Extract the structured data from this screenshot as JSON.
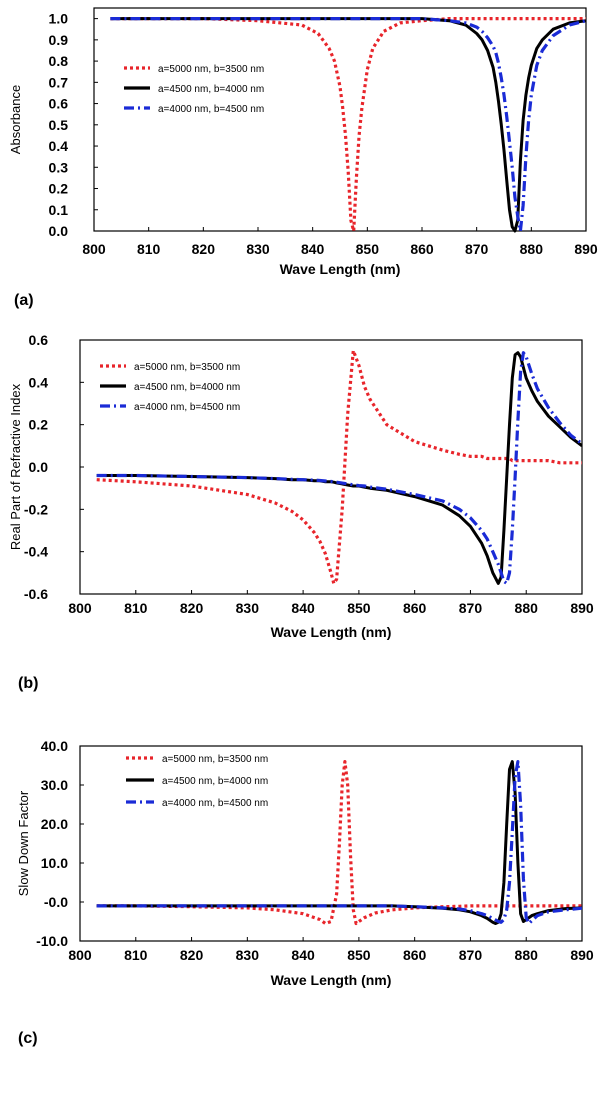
{
  "chart_data": [
    {
      "type": "line",
      "panel_label": "(a)",
      "xlabel": "Wave Length (nm)",
      "ylabel": "Absorbance",
      "xlim": [
        800,
        890
      ],
      "ylim": [
        0,
        1.05
      ],
      "xticks": [
        "800",
        "810",
        "820",
        "830",
        "840",
        "850",
        "860",
        "870",
        "880",
        "890"
      ],
      "yticks": [
        "0.0",
        "0.1",
        "0.2",
        "0.3",
        "0.4",
        "0.5",
        "0.6",
        "0.7",
        "0.8",
        "0.9",
        "1.0"
      ],
      "x": [
        803,
        810,
        820,
        830,
        838,
        841,
        843,
        844,
        845,
        845.5,
        846,
        846.5,
        847,
        847.5,
        848,
        848.5,
        849,
        850,
        851,
        853,
        856,
        860,
        865,
        868,
        870,
        871,
        872,
        873,
        873.5,
        874,
        874.5,
        875,
        875.5,
        876,
        876.5,
        877,
        877.5,
        878,
        878.5,
        879,
        879.5,
        880,
        881,
        882,
        884,
        887,
        890
      ],
      "series": [
        {
          "name": "a=5000 nm, b=3500 nm",
          "color": "#e8252b",
          "dash": "dotted",
          "values": [
            1.0,
            1.0,
            1.0,
            0.99,
            0.97,
            0.93,
            0.86,
            0.8,
            0.68,
            0.58,
            0.45,
            0.28,
            0.05,
            0.0,
            0.25,
            0.45,
            0.58,
            0.76,
            0.86,
            0.94,
            0.98,
            0.99,
            1.0,
            1.0,
            1.0,
            1.0,
            1.0,
            1.0,
            1.0,
            1.0,
            1.0,
            1.0,
            1.0,
            1.0,
            1.0,
            1.0,
            1.0,
            1.0,
            1.0,
            1.0,
            1.0,
            1.0,
            1.0,
            1.0,
            1.0,
            1.0,
            1.0
          ]
        },
        {
          "name": "a=4500 nm, b=4000 nm",
          "color": "#000000",
          "dash": "solid",
          "values": [
            1.0,
            1.0,
            1.0,
            1.0,
            1.0,
            1.0,
            1.0,
            1.0,
            1.0,
            1.0,
            1.0,
            1.0,
            1.0,
            1.0,
            1.0,
            1.0,
            1.0,
            1.0,
            1.0,
            1.0,
            1.0,
            1.0,
            0.99,
            0.97,
            0.93,
            0.9,
            0.85,
            0.77,
            0.7,
            0.61,
            0.5,
            0.38,
            0.24,
            0.1,
            0.02,
            0.0,
            0.05,
            0.33,
            0.52,
            0.64,
            0.72,
            0.78,
            0.86,
            0.9,
            0.95,
            0.98,
            0.99
          ]
        },
        {
          "name": "a=4000 nm, b=4500 nm",
          "color": "#1a2bd6",
          "dash": "dashdot",
          "values": [
            1.0,
            1.0,
            1.0,
            1.0,
            1.0,
            1.0,
            1.0,
            1.0,
            1.0,
            1.0,
            1.0,
            1.0,
            1.0,
            1.0,
            1.0,
            1.0,
            1.0,
            1.0,
            1.0,
            1.0,
            1.0,
            1.0,
            0.99,
            0.98,
            0.96,
            0.94,
            0.91,
            0.87,
            0.84,
            0.79,
            0.72,
            0.64,
            0.54,
            0.42,
            0.3,
            0.16,
            0.07,
            0.0,
            0.12,
            0.35,
            0.52,
            0.64,
            0.78,
            0.85,
            0.92,
            0.97,
            0.99
          ]
        }
      ]
    },
    {
      "type": "line",
      "panel_label": "(b)",
      "xlabel": "Wave Length (nm)",
      "ylabel": "Real Part of Refractive Index",
      "xlim": [
        800,
        890
      ],
      "ylim": [
        -0.6,
        0.6
      ],
      "xticks": [
        "800",
        "810",
        "820",
        "830",
        "840",
        "850",
        "860",
        "870",
        "880",
        "890"
      ],
      "yticks": [
        "-0.6",
        "-0.4",
        "-0.2",
        "0.0",
        "0.2",
        "0.4",
        "0.6"
      ],
      "x": [
        803,
        810,
        820,
        830,
        835,
        838,
        840,
        842,
        843,
        844,
        845,
        845.5,
        846,
        847,
        848,
        849,
        850,
        851,
        852,
        855,
        860,
        865,
        868,
        870,
        872,
        873,
        874,
        875,
        875.5,
        876,
        876.5,
        877,
        877.5,
        878,
        878.5,
        879,
        879.5,
        880,
        881,
        882,
        884,
        886,
        888,
        890
      ],
      "series": [
        {
          "name": "a=5000 nm, b=3500 nm",
          "color": "#e8252b",
          "dash": "dotted",
          "values": [
            -0.06,
            -0.07,
            -0.09,
            -0.13,
            -0.17,
            -0.21,
            -0.25,
            -0.31,
            -0.35,
            -0.41,
            -0.5,
            -0.55,
            -0.53,
            -0.2,
            0.25,
            0.55,
            0.48,
            0.38,
            0.32,
            0.2,
            0.12,
            0.08,
            0.06,
            0.05,
            0.05,
            0.04,
            0.04,
            0.04,
            0.04,
            0.04,
            0.04,
            0.04,
            0.03,
            0.03,
            0.03,
            0.03,
            0.03,
            0.03,
            0.03,
            0.03,
            0.03,
            0.02,
            0.02,
            0.02
          ]
        },
        {
          "name": "a=4500 nm, b=4000 nm",
          "color": "#000000",
          "dash": "solid",
          "values": [
            -0.04,
            -0.04,
            -0.045,
            -0.05,
            -0.055,
            -0.06,
            -0.06,
            -0.065,
            -0.065,
            -0.07,
            -0.07,
            -0.072,
            -0.075,
            -0.08,
            -0.085,
            -0.09,
            -0.09,
            -0.095,
            -0.1,
            -0.11,
            -0.14,
            -0.18,
            -0.23,
            -0.28,
            -0.36,
            -0.42,
            -0.5,
            -0.55,
            -0.52,
            -0.3,
            -0.05,
            0.2,
            0.42,
            0.53,
            0.54,
            0.52,
            0.47,
            0.42,
            0.36,
            0.31,
            0.24,
            0.19,
            0.14,
            0.1
          ]
        },
        {
          "name": "a=4000 nm, b=4500 nm",
          "color": "#1a2bd6",
          "dash": "dashdot",
          "values": [
            -0.04,
            -0.04,
            -0.045,
            -0.05,
            -0.055,
            -0.058,
            -0.06,
            -0.062,
            -0.064,
            -0.066,
            -0.068,
            -0.07,
            -0.072,
            -0.076,
            -0.08,
            -0.084,
            -0.088,
            -0.09,
            -0.095,
            -0.105,
            -0.13,
            -0.16,
            -0.2,
            -0.24,
            -0.3,
            -0.34,
            -0.4,
            -0.46,
            -0.5,
            -0.54,
            -0.55,
            -0.5,
            -0.3,
            -0.05,
            0.22,
            0.45,
            0.54,
            0.52,
            0.44,
            0.37,
            0.28,
            0.21,
            0.15,
            0.11
          ]
        }
      ]
    },
    {
      "type": "line",
      "panel_label": "(c)",
      "xlabel": "Wave Length (nm)",
      "ylabel": "Slow Down Factor",
      "xlim": [
        800,
        890
      ],
      "ylim": [
        -10,
        40
      ],
      "xticks": [
        "800",
        "810",
        "820",
        "830",
        "840",
        "850",
        "860",
        "870",
        "880",
        "890"
      ],
      "yticks": [
        "-10.0",
        "-0.0",
        "10.0",
        "20.0",
        "30.0",
        "40.0"
      ],
      "x": [
        803,
        810,
        820,
        830,
        835,
        840,
        843,
        844,
        845,
        846,
        846.5,
        847,
        847.5,
        848,
        848.5,
        849,
        849.5,
        850,
        851,
        853,
        856,
        860,
        865,
        868,
        870,
        872,
        873,
        874,
        874.5,
        875,
        875.5,
        876,
        876.5,
        877,
        877.5,
        878,
        878.5,
        879,
        879.5,
        880,
        880.5,
        881,
        882,
        884,
        887,
        890
      ],
      "series": [
        {
          "name": "a=5000 nm, b=3500 nm",
          "color": "#e8252b",
          "dash": "dotted",
          "values": [
            -1.0,
            -1.0,
            -1.2,
            -1.5,
            -2.0,
            -3.0,
            -4.5,
            -5.5,
            -5.0,
            2.0,
            15.0,
            30.0,
            36.0,
            30.0,
            12.0,
            -2.0,
            -5.5,
            -5.0,
            -4.0,
            -2.8,
            -2.0,
            -1.5,
            -1.2,
            -1.1,
            -1.0,
            -1.0,
            -1.0,
            -1.0,
            -1.0,
            -1.0,
            -1.0,
            -1.0,
            -1.0,
            -1.0,
            -1.0,
            -1.0,
            -1.0,
            -1.0,
            -1.0,
            -1.0,
            -1.0,
            -1.0,
            -1.0,
            -1.0,
            -1.0,
            -1.0
          ]
        },
        {
          "name": "a=4500 nm, b=4000 nm",
          "color": "#000000",
          "dash": "solid",
          "values": [
            -1.0,
            -1.0,
            -1.0,
            -1.0,
            -1.0,
            -1.0,
            -1.0,
            -1.0,
            -1.0,
            -1.0,
            -1.0,
            -1.0,
            -1.0,
            -1.0,
            -1.0,
            -1.0,
            -1.0,
            -1.0,
            -1.0,
            -1.0,
            -1.0,
            -1.2,
            -1.6,
            -2.0,
            -2.5,
            -3.5,
            -4.2,
            -5.2,
            -5.5,
            -5.2,
            -3.0,
            5.0,
            20.0,
            34.0,
            36.0,
            28.0,
            10.0,
            -3.0,
            -5.0,
            -4.5,
            -4.0,
            -3.5,
            -3.0,
            -2.2,
            -1.7,
            -1.5
          ]
        },
        {
          "name": "a=4000 nm, b=4500 nm",
          "color": "#1a2bd6",
          "dash": "dashdot",
          "values": [
            -1.0,
            -1.0,
            -1.0,
            -1.0,
            -1.0,
            -1.0,
            -1.0,
            -1.0,
            -1.0,
            -1.0,
            -1.0,
            -1.0,
            -1.0,
            -1.0,
            -1.0,
            -1.0,
            -1.0,
            -1.0,
            -1.0,
            -1.0,
            -1.0,
            -1.2,
            -1.5,
            -1.8,
            -2.2,
            -3.0,
            -3.5,
            -4.2,
            -4.6,
            -5.0,
            -5.2,
            -4.5,
            -2.0,
            5.0,
            18.0,
            32.0,
            36.0,
            25.0,
            6.0,
            -4.0,
            -5.5,
            -4.8,
            -3.5,
            -2.5,
            -2.0,
            -1.6
          ]
        }
      ]
    }
  ]
}
